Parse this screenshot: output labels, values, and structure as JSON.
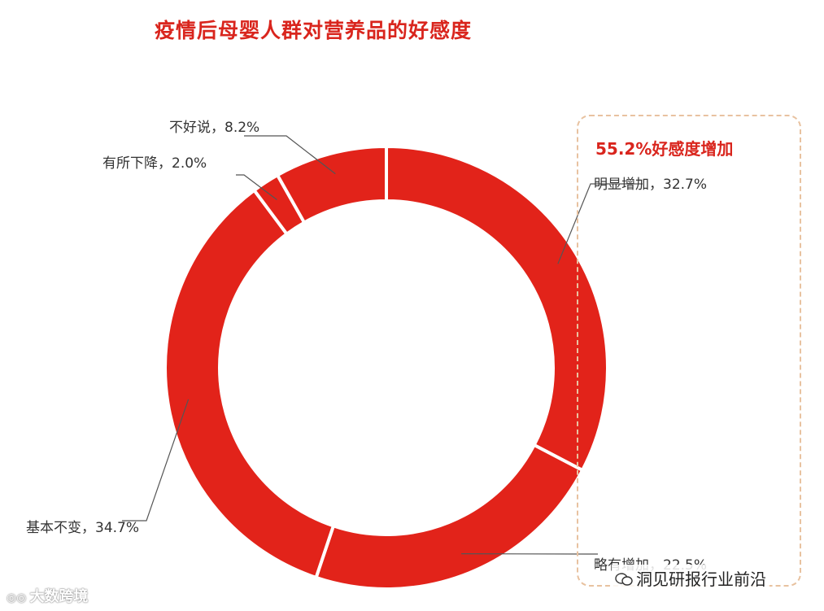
{
  "title": "疫情后母婴人群对营养品的好感度",
  "callout": {
    "title": "55.2%好感度增加"
  },
  "chart_data": {
    "type": "pie",
    "title": "疫情后母婴人群对营养品的好感度",
    "slices": [
      {
        "label": "明显增加",
        "value": 32.7,
        "text": "明显增加，32.7%"
      },
      {
        "label": "略有增加",
        "value": 22.5,
        "text": "略有增加，22.5%"
      },
      {
        "label": "基本不变",
        "value": 34.7,
        "text": "基本不变，34.7%"
      },
      {
        "label": "有所下降",
        "value": 2.0,
        "text": "有所下降，2.0%"
      },
      {
        "label": "不好说",
        "value": 8.2,
        "text": "不好说，8.2%"
      }
    ],
    "colors": {
      "slice": "#e2231a",
      "separator": "#ffffff",
      "leader": "#555555"
    },
    "legend": "none"
  },
  "watermarks": {
    "left": "大数跨境",
    "right": "洞见研报行业前沿",
    "left_icon": "logo-icon",
    "right_icon": "wechat-icon"
  }
}
